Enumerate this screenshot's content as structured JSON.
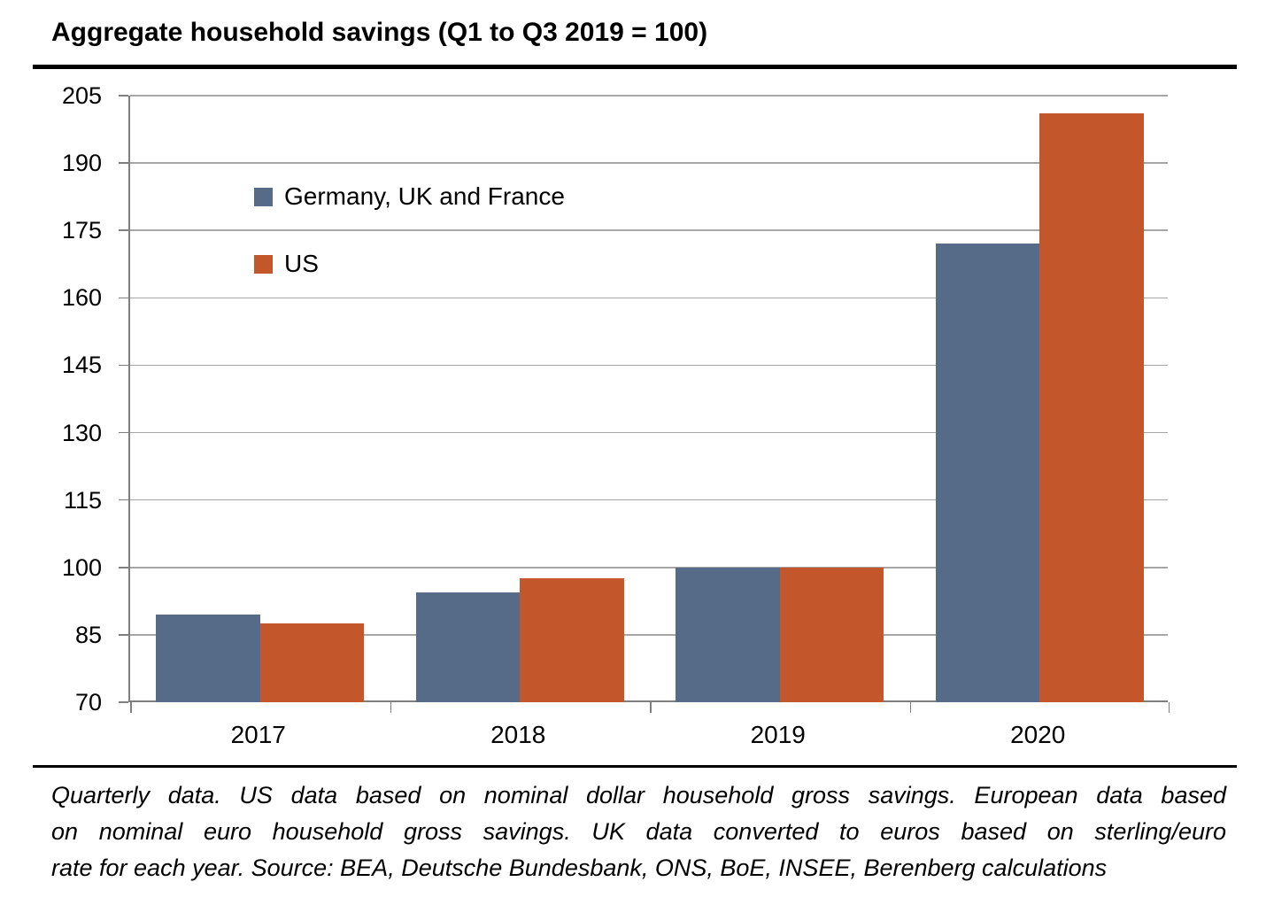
{
  "title": "Aggregate household savings (Q1 to Q3 2019 = 100)",
  "chart_data": {
    "type": "bar",
    "title": "Aggregate household savings (Q1 to Q3 2019 = 100)",
    "categories": [
      "2017",
      "2018",
      "2019",
      "2020"
    ],
    "series": [
      {
        "name": "Germany, UK and France",
        "color": "#566B87",
        "values": [
          89.5,
          94.5,
          100,
          172
        ]
      },
      {
        "name": "US",
        "color": "#C4562C",
        "values": [
          87.5,
          97.5,
          100,
          201
        ]
      }
    ],
    "ylim": [
      70,
      205
    ],
    "yticks": [
      70,
      85,
      100,
      115,
      130,
      145,
      160,
      175,
      190,
      205
    ],
    "xlabel": "",
    "ylabel": "",
    "grid": true,
    "legend_position": "upper-left-inside",
    "baseline_value": 70
  },
  "footnote": {
    "line1": "Quarterly data. US data based on nominal dollar household gross savings. European data based",
    "line2": "on nominal euro household gross savings. UK data converted to euros based on sterling/euro",
    "line3": "rate for each year. Source: BEA, Deutsche Bundesbank, ONS, BoE, INSEE, Berenberg calculations"
  },
  "colors": {
    "europe_series": "#566B87",
    "us_series": "#C4562C",
    "gridline": "#A6A6A6",
    "axis": "#7F7F7F",
    "rule": "#000000"
  }
}
